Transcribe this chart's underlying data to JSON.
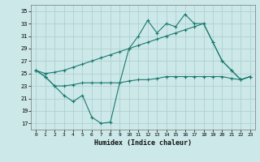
{
  "xlabel": "Humidex (Indice chaleur)",
  "bg_color": "#cce8e8",
  "line_color": "#1a7a6e",
  "grid_color": "#aacccc",
  "ylim": [
    16,
    36
  ],
  "yticks": [
    17,
    19,
    21,
    23,
    25,
    27,
    29,
    31,
    33,
    35
  ],
  "xlim": [
    -0.5,
    23.5
  ],
  "xticks": [
    0,
    1,
    2,
    3,
    4,
    5,
    6,
    7,
    8,
    9,
    10,
    11,
    12,
    13,
    14,
    15,
    16,
    17,
    18,
    19,
    20,
    21,
    22,
    23
  ],
  "x": [
    0,
    1,
    2,
    3,
    4,
    5,
    6,
    7,
    8,
    9,
    10,
    11,
    12,
    13,
    14,
    15,
    16,
    17,
    18,
    19,
    20,
    21,
    22,
    23
  ],
  "line1": [
    25.5,
    24.5,
    23.0,
    21.5,
    20.5,
    21.5,
    18.0,
    17.0,
    17.2,
    23.5,
    29.0,
    31.0,
    33.5,
    31.5,
    33.0,
    32.5,
    34.5,
    33.0,
    33.0,
    30.0,
    27.0,
    25.5,
    24.0,
    24.5
  ],
  "line2": [
    25.5,
    25.0,
    25.2,
    25.5,
    26.0,
    26.5,
    27.0,
    27.5,
    28.0,
    28.5,
    29.0,
    29.5,
    30.0,
    30.5,
    31.0,
    31.5,
    32.0,
    32.5,
    33.0,
    30.0,
    27.0,
    25.5,
    24.0,
    24.5
  ],
  "line3": [
    25.5,
    24.5,
    23.0,
    23.0,
    23.2,
    23.5,
    23.5,
    23.5,
    23.5,
    23.5,
    23.8,
    24.0,
    24.0,
    24.2,
    24.5,
    24.5,
    24.5,
    24.5,
    24.5,
    24.5,
    24.5,
    24.2,
    24.0,
    24.5
  ]
}
